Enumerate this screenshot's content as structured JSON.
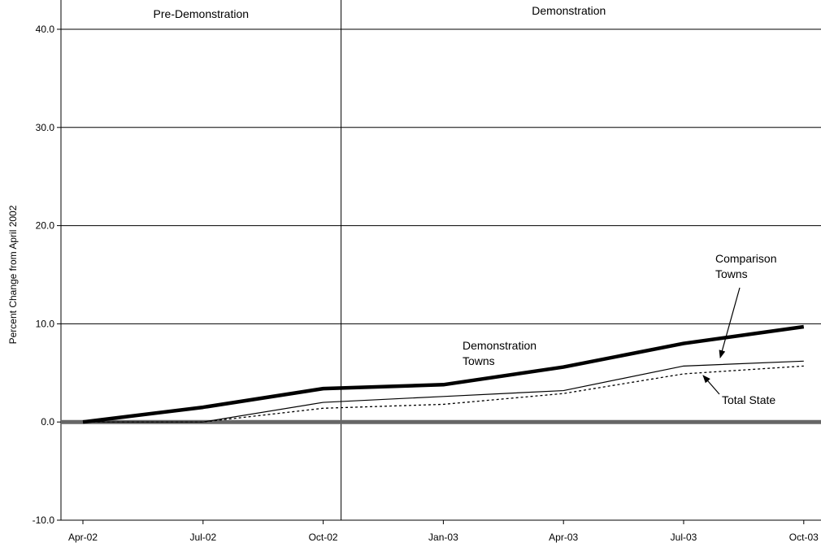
{
  "chart_data": {
    "type": "line",
    "title": "",
    "xlabel": "",
    "ylabel": "Percent Change from April 2002",
    "categories": [
      "Apr-02",
      "Jul-02",
      "Oct-02",
      "Jan-03",
      "Apr-03",
      "Jul-03",
      "Oct-03"
    ],
    "ylim": [
      -10,
      40
    ],
    "yticks": [
      -10,
      0,
      10,
      20,
      30,
      40
    ],
    "ytick_labels": [
      "-10.0",
      "0.0",
      "10.0",
      "20.0",
      "30.0",
      "40.0"
    ],
    "grid": true,
    "periods": [
      {
        "label": "Pre-Demonstration"
      },
      {
        "label": "Demonstration"
      }
    ],
    "series": [
      {
        "key": "demo",
        "values": [
          0.0,
          1.5,
          3.4,
          3.8,
          5.6,
          8.0,
          9.7
        ],
        "style": "thick",
        "color": "#000000"
      },
      {
        "key": "comp",
        "values": [
          0.0,
          0.0,
          2.0,
          2.6,
          3.2,
          5.7,
          6.2
        ],
        "style": "solid",
        "color": "#000000"
      },
      {
        "key": "state",
        "values": [
          0.0,
          0.0,
          1.4,
          1.8,
          2.9,
          4.9,
          5.7
        ],
        "style": "dotted",
        "color": "#000000"
      }
    ],
    "annotations": [
      {
        "key": "demo",
        "lines": [
          "Demonstration",
          "Towns"
        ]
      },
      {
        "key": "comp",
        "lines": [
          "Comparison",
          "Towns"
        ]
      },
      {
        "key": "state",
        "lines": [
          "Total State"
        ]
      }
    ]
  }
}
